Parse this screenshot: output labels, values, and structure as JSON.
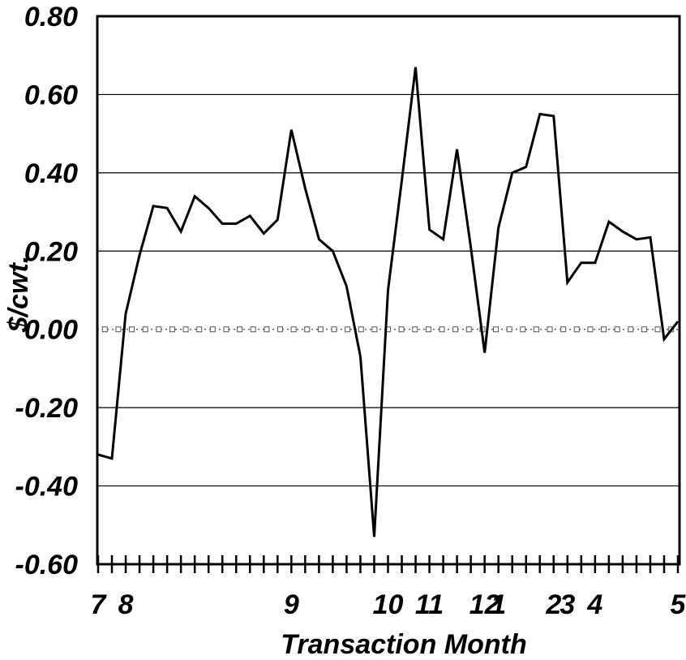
{
  "chart_data": {
    "type": "line",
    "title": "",
    "xlabel": "Transaction Month",
    "ylabel": "$/cwt.",
    "ylim": [
      -0.6,
      0.8
    ],
    "yticks": [
      0.8,
      0.6,
      0.4,
      0.2,
      0.0,
      -0.2,
      -0.4,
      -0.6
    ],
    "ytick_labels": [
      "0.80",
      "0.60",
      "0.40",
      "0.20",
      "0.00",
      "-0.20",
      "-0.40",
      "-0.60"
    ],
    "grid": "horizontal",
    "x_tick_count": 43,
    "x_labels": [
      {
        "index": 0,
        "text": "7"
      },
      {
        "index": 2,
        "text": "8"
      },
      {
        "index": 14,
        "text": "9"
      },
      {
        "index": 21,
        "text": "10"
      },
      {
        "index": 24,
        "text": "11"
      },
      {
        "index": 28,
        "text": "12"
      },
      {
        "index": 29,
        "text": "1"
      },
      {
        "index": 33,
        "text": "2"
      },
      {
        "index": 34,
        "text": "3"
      },
      {
        "index": 36,
        "text": "4"
      },
      {
        "index": 42,
        "text": "5"
      }
    ],
    "series": [
      {
        "values": [
          -0.32,
          -0.33,
          0.04,
          0.19,
          0.315,
          0.31,
          0.25,
          0.34,
          0.31,
          0.27,
          0.27,
          0.29,
          0.245,
          0.28,
          0.51,
          0.36,
          0.23,
          0.2,
          0.11,
          -0.07,
          -0.53,
          0.1,
          0.38,
          0.67,
          0.255,
          0.23,
          0.46,
          0.21,
          -0.06,
          0.26,
          0.4,
          0.415,
          0.55,
          0.545,
          0.12,
          0.17,
          0.17,
          0.275,
          0.25,
          0.23,
          0.235,
          -0.025,
          0.02
        ]
      }
    ],
    "reference_line": {
      "y": 0.0,
      "style": "dotted-markers"
    }
  }
}
